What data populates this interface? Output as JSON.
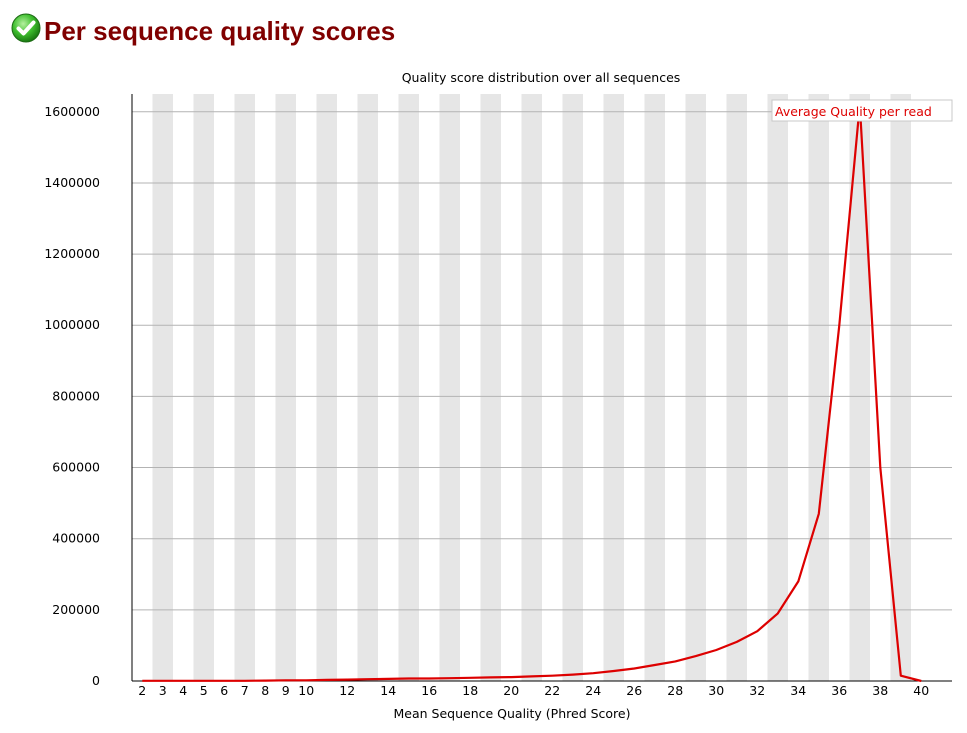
{
  "header": {
    "title": "Per sequence quality scores",
    "status_icon": "pass-check-icon",
    "status_color": "#22aa22"
  },
  "chart_data": {
    "type": "line",
    "title": "Quality score distribution over all sequences",
    "xlabel": "Mean Sequence Quality (Phred Score)",
    "ylabel": "",
    "x_tick_labels": [
      "2",
      "3",
      "4",
      "5",
      "6",
      "7",
      "8",
      "9",
      "10",
      "12",
      "14",
      "16",
      "18",
      "20",
      "22",
      "24",
      "26",
      "28",
      "30",
      "32",
      "34",
      "36",
      "38",
      "40"
    ],
    "y_tick_labels": [
      "0",
      "200000",
      "400000",
      "600000",
      "800000",
      "1000000",
      "1200000",
      "1400000",
      "1600000"
    ],
    "ylim": [
      0,
      1650000
    ],
    "grid": true,
    "band_color": "#e6e6e6",
    "legend_position": "top-right",
    "series": [
      {
        "name": "Average Quality per read",
        "color": "#dd0000",
        "x": [
          2,
          3,
          4,
          5,
          6,
          7,
          8,
          9,
          10,
          11,
          12,
          13,
          14,
          15,
          16,
          17,
          18,
          19,
          20,
          21,
          22,
          23,
          24,
          25,
          26,
          27,
          28,
          29,
          30,
          31,
          32,
          33,
          34,
          35,
          36,
          37,
          38,
          39,
          40
        ],
        "y": [
          500,
          500,
          500,
          500,
          500,
          500,
          1000,
          2000,
          2000,
          3000,
          4000,
          5000,
          6000,
          7000,
          7000,
          8000,
          9000,
          10000,
          11000,
          13000,
          15000,
          18000,
          22000,
          28000,
          35000,
          45000,
          55000,
          70000,
          87000,
          110000,
          140000,
          190000,
          280000,
          470000,
          1000000,
          1620000,
          600000,
          15000,
          0
        ]
      }
    ]
  }
}
